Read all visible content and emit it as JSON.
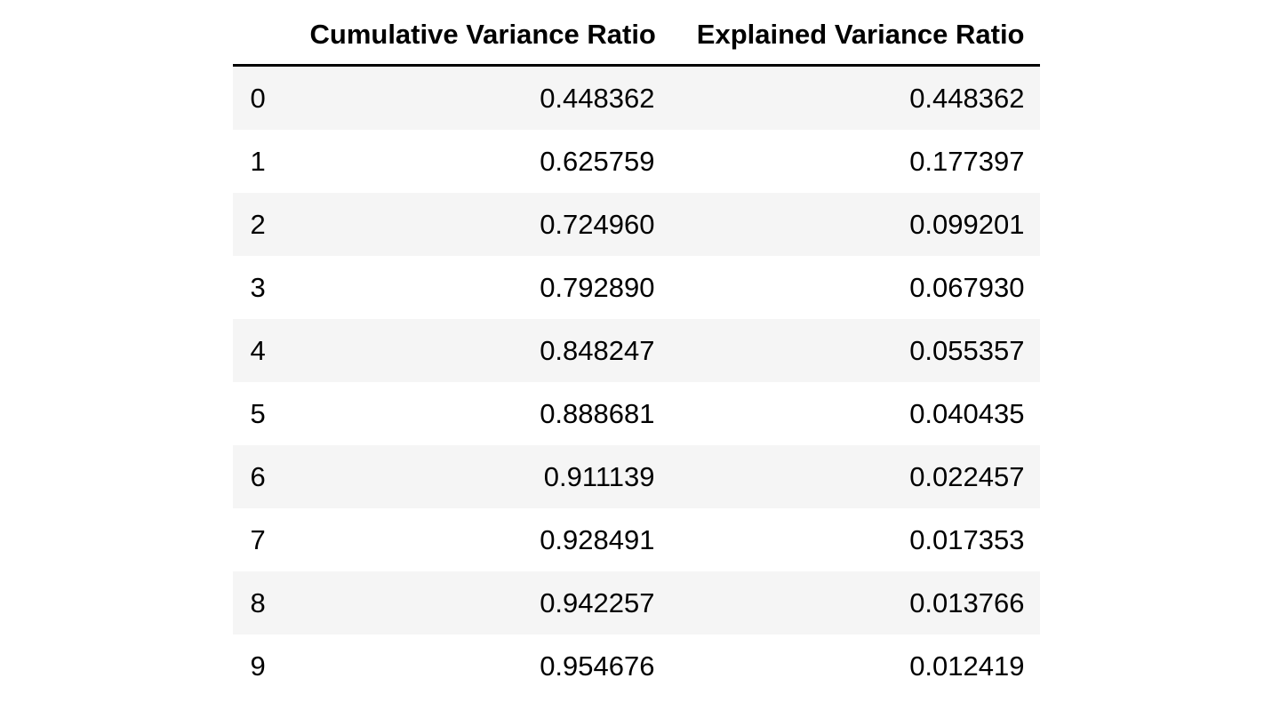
{
  "table": {
    "columns": [
      "Cumulative Variance Ratio",
      "Explained Variance Ratio"
    ],
    "rows": [
      {
        "index": "0",
        "cumulative": "0.448362",
        "explained": "0.448362"
      },
      {
        "index": "1",
        "cumulative": "0.625759",
        "explained": "0.177397"
      },
      {
        "index": "2",
        "cumulative": "0.724960",
        "explained": "0.099201"
      },
      {
        "index": "3",
        "cumulative": "0.792890",
        "explained": "0.067930"
      },
      {
        "index": "4",
        "cumulative": "0.848247",
        "explained": "0.055357"
      },
      {
        "index": "5",
        "cumulative": "0.888681",
        "explained": "0.040435"
      },
      {
        "index": "6",
        "cumulative": "0.911139",
        "explained": "0.022457"
      },
      {
        "index": "7",
        "cumulative": "0.928491",
        "explained": "0.017353"
      },
      {
        "index": "8",
        "cumulative": "0.942257",
        "explained": "0.013766"
      },
      {
        "index": "9",
        "cumulative": "0.954676",
        "explained": "0.012419"
      }
    ]
  },
  "chart_data": {
    "type": "table",
    "title": "",
    "columns": [
      "Cumulative Variance Ratio",
      "Explained Variance Ratio"
    ],
    "index": [
      0,
      1,
      2,
      3,
      4,
      5,
      6,
      7,
      8,
      9
    ],
    "series": [
      {
        "name": "Cumulative Variance Ratio",
        "values": [
          0.448362,
          0.625759,
          0.72496,
          0.79289,
          0.848247,
          0.888681,
          0.911139,
          0.928491,
          0.942257,
          0.954676
        ]
      },
      {
        "name": "Explained Variance Ratio",
        "values": [
          0.448362,
          0.177397,
          0.099201,
          0.06793,
          0.055357,
          0.040435,
          0.022457,
          0.017353,
          0.013766,
          0.012419
        ]
      }
    ],
    "layout": {
      "striped_rows": true,
      "header_rule": true,
      "value_alignment": "right"
    }
  },
  "colors": {
    "background": "#ffffff",
    "stripe": "#f5f5f5",
    "text": "#000000",
    "header_rule": "#000000"
  }
}
